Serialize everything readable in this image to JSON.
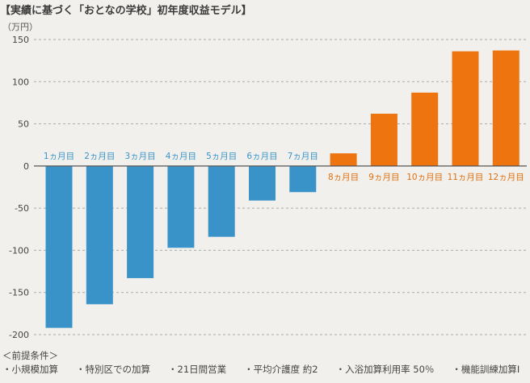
{
  "chart_data": {
    "type": "bar",
    "title": "【実績に基づく「おとなの学校」初年度収益モデル】",
    "unit_label": "（万円）",
    "categories": [
      "1ヵ月目",
      "2ヵ月目",
      "3ヵ月目",
      "4ヵ月目",
      "5ヵ月目",
      "6ヵ月目",
      "7ヵ月目",
      "8ヵ月目",
      "9ヵ月目",
      "10ヵ月目",
      "11ヵ月目",
      "12ヵ月目"
    ],
    "values": [
      -192,
      -164,
      -133,
      -97,
      -84,
      -41,
      -31,
      15,
      62,
      87,
      136,
      137
    ],
    "ylim": [
      -200,
      150
    ],
    "yticks": [
      150,
      100,
      50,
      0,
      -50,
      -100,
      -150,
      -200
    ],
    "grid": true,
    "colors": {
      "negative": "#3a93c8",
      "positive": "#ee7410",
      "negative_label": "#3a93c8",
      "positive_label": "#e06f10"
    }
  },
  "notes": {
    "heading": "＜前提条件＞",
    "items": [
      "・小規模加算",
      "・特別区での加算",
      "・21日間営業",
      "・平均介護度 約2",
      "・入浴加算利用率 50％",
      "・機能訓練加算Ⅰ"
    ]
  }
}
